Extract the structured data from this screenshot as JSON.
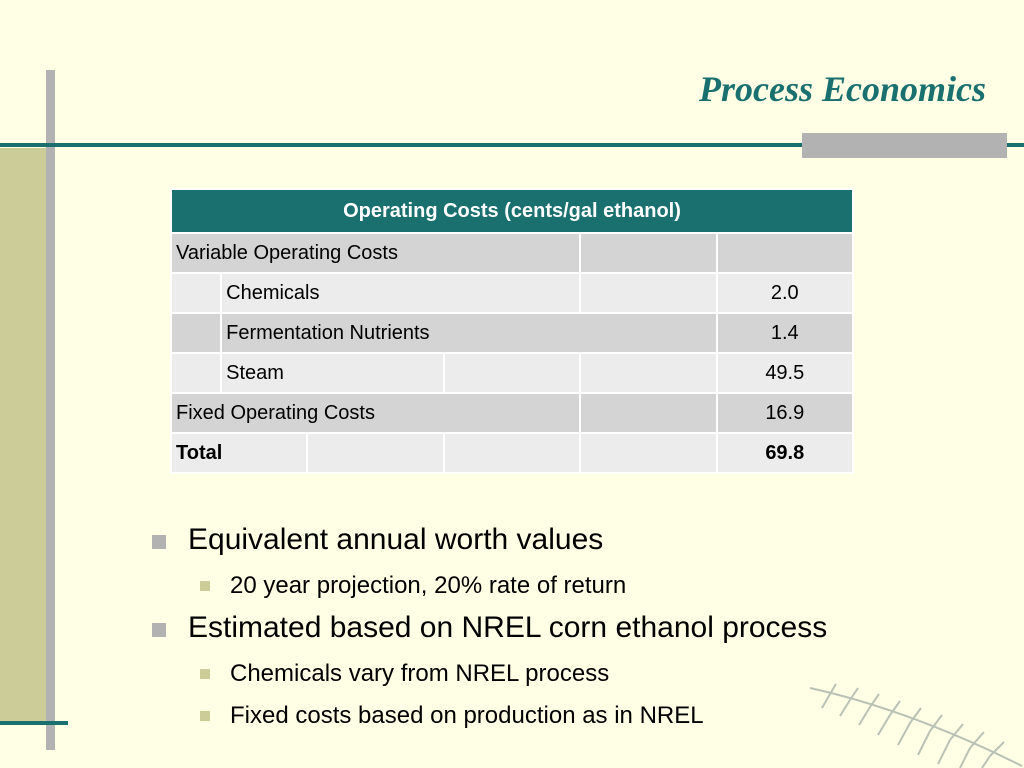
{
  "slide": {
    "title": "Process Economics"
  },
  "table": {
    "header": "Operating Costs (cents/gal ethanol)",
    "rows": {
      "variable_label": "Variable Operating Costs",
      "chemicals_label": "Chemicals",
      "chemicals_value": "2.0",
      "nutrients_label": "Fermentation Nutrients",
      "nutrients_value": "1.4",
      "steam_label": "Steam",
      "steam_value": "49.5",
      "fixed_label": "Fixed Operating Costs",
      "fixed_value": "16.9",
      "total_label": "Total",
      "total_value": "69.8"
    }
  },
  "bullets": [
    {
      "text": "Equivalent annual worth values",
      "sub": [
        "20 year projection, 20% rate of return"
      ]
    },
    {
      "text": "Estimated based on NREL corn ethanol process",
      "sub": [
        "Chemicals vary from NREL process",
        "Fixed costs based on production as in NREL"
      ]
    }
  ],
  "colors": {
    "teal": "#1a6f6f",
    "background": "#ffffe5",
    "olive": "#cccc99",
    "gray": "#b2b2b2"
  },
  "icons": {
    "decoration": "fern-frond-icon"
  }
}
